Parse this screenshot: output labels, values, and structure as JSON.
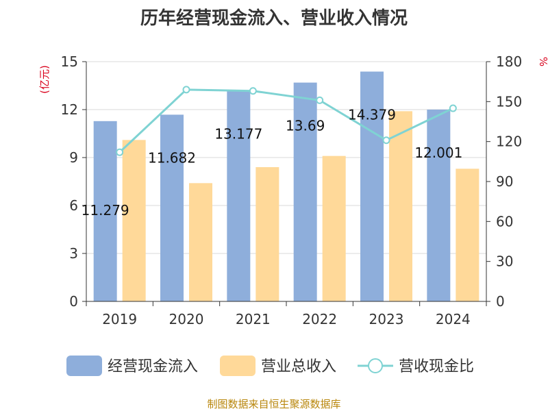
{
  "chart_data": {
    "type": "bar",
    "title": "历年经营现金流入、营业收入情况",
    "categories": [
      "2019",
      "2020",
      "2021",
      "2022",
      "2023",
      "2024"
    ],
    "series": [
      {
        "name": "经营现金流入",
        "kind": "bar",
        "axis": "left",
        "color": "#8eaedb",
        "values": [
          11.279,
          11.682,
          13.177,
          13.69,
          14.379,
          12.001
        ],
        "labels": [
          "11.279",
          "11.682",
          "13.177",
          "13.69",
          "14.379",
          "12.001"
        ]
      },
      {
        "name": "营业总收入",
        "kind": "bar",
        "axis": "left",
        "color": "#ffd999",
        "values": [
          10.1,
          7.4,
          8.4,
          9.1,
          11.9,
          8.3
        ]
      },
      {
        "name": "营收现金比",
        "kind": "line",
        "axis": "right",
        "color": "#7fd3d3",
        "values": [
          112,
          159,
          158,
          151,
          121,
          145
        ]
      }
    ],
    "y_left": {
      "label": "(亿元)",
      "min": 0,
      "max": 15,
      "ticks": [
        0,
        3,
        6,
        9,
        12,
        15
      ]
    },
    "y_right": {
      "label": "%",
      "min": 0,
      "max": 180,
      "ticks": [
        0,
        30,
        60,
        90,
        120,
        150,
        180
      ]
    },
    "grid": true,
    "legend_position": "bottom"
  },
  "source": "制图数据来自恒生聚源数据库"
}
